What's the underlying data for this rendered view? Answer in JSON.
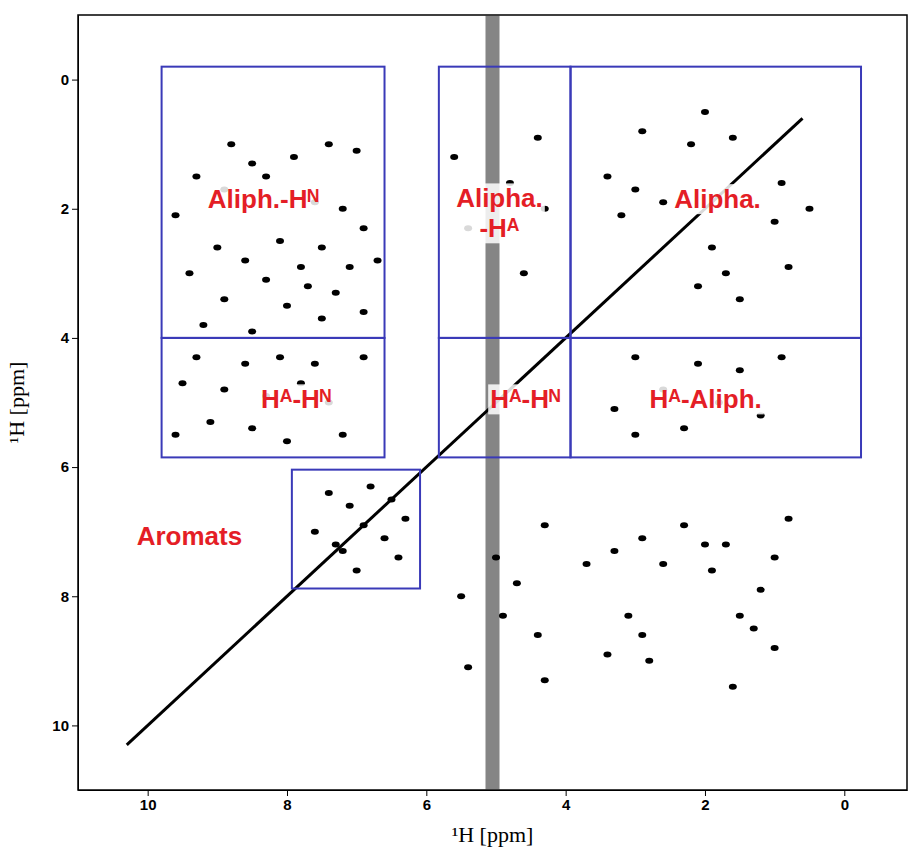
{
  "chart_data": {
    "type": "scatter",
    "x_label": "¹H [ppm]",
    "y_label": "¹H [ppm]",
    "xlim": [
      11,
      -0.9
    ],
    "ylim": [
      -1,
      11
    ],
    "xticks": [
      10,
      8,
      6,
      4,
      2,
      0
    ],
    "yticks": [
      0,
      2,
      4,
      6,
      8,
      10
    ],
    "grid": false,
    "series": [
      {
        "type": "line",
        "line_style": "band",
        "color": "#333333",
        "x": [
          5.05,
          5.05
        ],
        "values": [
          -1,
          11
        ]
      },
      {
        "type": "line",
        "line_style": "solid",
        "color": "#000000",
        "x": [
          10.3,
          0.6
        ],
        "values": [
          10.3,
          0.6
        ]
      },
      {
        "type": "scatter",
        "marker": "circle",
        "color": "#000000",
        "x": [
          8.8,
          8.5,
          8.3,
          7.9,
          7.4,
          7.0,
          9.3,
          8.9,
          7.6,
          7.2,
          6.9,
          9.6,
          8.1,
          7.5,
          9.0,
          8.6,
          7.8,
          7.1,
          6.7,
          9.4,
          8.3,
          7.7,
          7.3,
          8.9,
          8.0,
          7.5,
          6.9,
          9.2,
          8.5,
          9.3,
          8.6,
          8.1,
          7.6,
          6.9,
          9.5,
          8.9,
          8.3,
          7.8,
          7.4,
          9.1,
          8.5,
          9.6,
          8.0,
          7.2,
          6.9,
          7.1,
          6.6,
          6.8,
          6.3,
          7.3,
          7.2,
          6.5,
          7.6,
          7.0,
          6.4,
          7.4,
          1.6,
          0.9,
          2.2,
          1.0,
          3.0,
          1.7,
          2.6,
          1.9,
          3.2,
          2.1,
          0.8,
          2.9,
          1.5,
          3.4,
          2.0,
          0.5,
          3.0,
          2.1,
          1.5,
          0.9,
          2.6,
          1.8,
          3.3,
          1.2,
          2.3,
          3.0,
          4.4,
          4.8,
          4.3,
          5.4,
          4.6,
          5.6,
          1.0,
          1.3,
          1.5,
          1.2,
          1.0,
          2.3,
          2.0,
          1.9,
          2.6,
          2.9,
          3.1,
          3.3,
          3.7,
          3.4,
          2.8,
          1.6,
          1.7,
          2.9,
          0.8,
          4.3,
          4.4,
          4.9,
          4.7,
          5.4,
          5.5,
          4.3,
          5.0
        ],
        "values": [
          1.0,
          1.3,
          1.5,
          1.2,
          1.0,
          1.1,
          1.5,
          1.7,
          1.9,
          2.0,
          2.3,
          2.1,
          2.5,
          2.6,
          2.6,
          2.8,
          2.9,
          2.9,
          2.8,
          3.0,
          3.1,
          3.2,
          3.3,
          3.4,
          3.5,
          3.7,
          3.6,
          3.8,
          3.9,
          4.3,
          4.4,
          4.3,
          4.4,
          4.3,
          4.7,
          4.8,
          4.9,
          4.7,
          5.0,
          5.3,
          5.4,
          5.5,
          5.6,
          5.5,
          6.9,
          6.6,
          7.1,
          6.3,
          6.8,
          7.2,
          7.3,
          6.5,
          7.0,
          7.6,
          7.4,
          6.4,
          0.9,
          1.6,
          1.0,
          2.2,
          1.7,
          3.0,
          1.9,
          2.6,
          2.1,
          3.2,
          2.9,
          0.8,
          3.4,
          1.5,
          0.5,
          2.0,
          4.3,
          4.4,
          4.5,
          4.3,
          4.8,
          5.0,
          5.1,
          5.2,
          5.4,
          5.5,
          0.9,
          1.6,
          2.0,
          2.3,
          3.0,
          1.2,
          8.8,
          8.5,
          8.3,
          7.9,
          7.4,
          6.9,
          7.2,
          7.6,
          7.5,
          8.6,
          8.3,
          7.3,
          7.5,
          8.9,
          9.0,
          9.4,
          7.2,
          7.1,
          6.8,
          9.3,
          8.6,
          8.3,
          7.8,
          9.1,
          8.0,
          6.9,
          7.4
        ]
      }
    ],
    "regions": [
      {
        "label": "Aliph.-Hᴺ",
        "x": [
          9.8,
          6.6
        ],
        "y": [
          -0.2,
          4.0
        ],
        "label_x": 8.34,
        "label_y": 1.85,
        "color": "#3a3ab8"
      },
      {
        "label": "Hᴬ-Hᴺ",
        "x": [
          9.8,
          6.6
        ],
        "y": [
          4.0,
          5.85
        ],
        "label_x": 7.87,
        "label_y": 4.95,
        "color": "#3a3ab8"
      },
      {
        "label": "Alipha.-Hᴬ",
        "x": [
          5.82,
          3.93
        ],
        "y": [
          -0.2,
          4.0
        ],
        "label_x": 4.95,
        "label_y": 2.1,
        "color": "#3a3ab8"
      },
      {
        "label": "Alipha.",
        "x": [
          3.93,
          -0.24
        ],
        "y": [
          -0.2,
          4.0
        ],
        "label_x": 1.82,
        "label_y": 1.85,
        "color": "#3a3ab8"
      },
      {
        "label": "Hᴬ-Hᴺ",
        "x": [
          5.82,
          3.93
        ],
        "y": [
          4.0,
          5.85
        ],
        "label_x": 4.58,
        "label_y": 4.95,
        "color": "#3a3ab8"
      },
      {
        "label": "Hᴬ-Aliph.",
        "x": [
          3.93,
          -0.24
        ],
        "y": [
          4.0,
          5.85
        ],
        "label_x": 1.99,
        "label_y": 4.95,
        "color": "#3a3ab8"
      },
      {
        "label": "Aromats",
        "x": [
          7.93,
          6.09
        ],
        "y": [
          6.04,
          7.88
        ],
        "label_x": 9.4,
        "label_y": 7.06,
        "color": "#3a3ab8"
      }
    ]
  }
}
